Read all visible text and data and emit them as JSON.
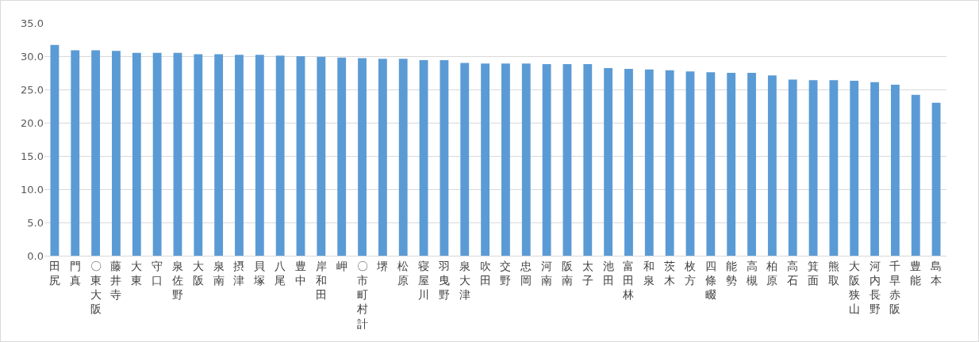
{
  "chart_data": {
    "type": "bar",
    "categories": [
      "田尻",
      "門真",
      "〇東大阪",
      "藤井寺",
      "大東",
      "守口",
      "泉佐野",
      "大阪",
      "泉南",
      "摂津",
      "貝塚",
      "八尾",
      "豊中",
      "岸和田",
      "岬",
      "〇市町村計",
      "堺",
      "松原",
      "寝屋川",
      "羽曳野",
      "泉大津",
      "吹田",
      "交野",
      "忠岡",
      "河南",
      "阪南",
      "太子",
      "池田",
      "富田林",
      "和泉",
      "茨木",
      "枚方",
      "四條畷",
      "能勢",
      "高槻",
      "柏原",
      "高石",
      "箕面",
      "熊取",
      "大阪狭山",
      "河内長野",
      "千早赤阪",
      "豊能",
      "島本"
    ],
    "values": [
      31.7,
      30.9,
      30.9,
      30.8,
      30.5,
      30.5,
      30.5,
      30.3,
      30.3,
      30.2,
      30.2,
      30.1,
      30.0,
      29.9,
      29.8,
      29.7,
      29.6,
      29.6,
      29.4,
      29.4,
      29.0,
      28.9,
      28.9,
      28.9,
      28.8,
      28.8,
      28.8,
      28.2,
      28.1,
      28.0,
      27.9,
      27.7,
      27.6,
      27.5,
      27.5,
      27.1,
      26.5,
      26.4,
      26.4,
      26.3,
      26.1,
      25.7,
      24.2,
      23.0
    ],
    "color": "#5b9bd5",
    "ylim": [
      0,
      35
    ],
    "yticks": [
      {
        "value": 0,
        "label": "0.0"
      },
      {
        "value": 5,
        "label": "5.0"
      },
      {
        "value": 10,
        "label": "10.0"
      },
      {
        "value": 15,
        "label": "15.0"
      },
      {
        "value": 20,
        "label": "20.0"
      },
      {
        "value": 25,
        "label": "25.0"
      },
      {
        "value": 30,
        "label": "30.0"
      },
      {
        "value": 35,
        "label": "35.0"
      }
    ],
    "grid": "y",
    "legend": false
  }
}
